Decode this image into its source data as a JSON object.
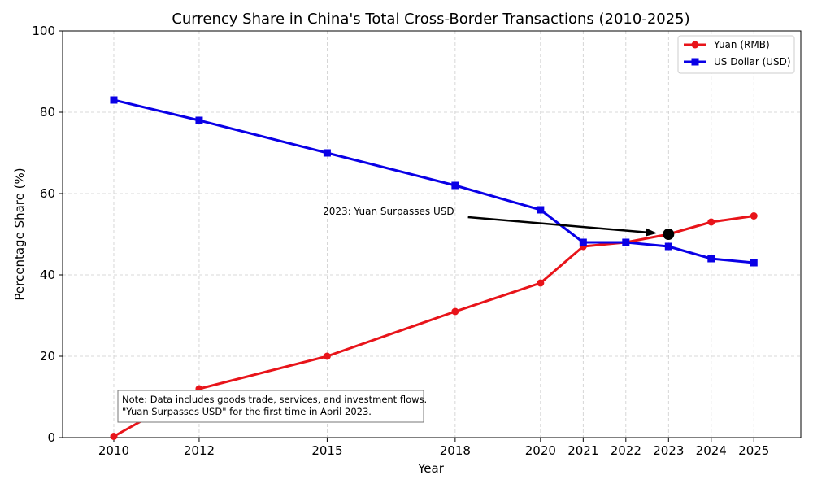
{
  "chart_data": {
    "type": "line",
    "title": "Currency Share in China's Total Cross-Border Transactions (2010-2025)",
    "xlabel": "Year",
    "ylabel": "Percentage Share (%)",
    "x": [
      2010,
      2012,
      2015,
      2018,
      2020,
      2021,
      2022,
      2023,
      2024,
      2025
    ],
    "x_tick_labels": [
      "2010",
      "2012",
      "2015",
      "2018",
      "2020",
      "2021",
      "2022",
      "2023",
      "2024",
      "2025"
    ],
    "ylim": [
      0,
      100
    ],
    "y_ticks": [
      0,
      20,
      40,
      60,
      80,
      100
    ],
    "y_tick_labels": [
      "0",
      "20",
      "40",
      "60",
      "80",
      "100"
    ],
    "grid": true,
    "legend_position": "top-right",
    "series": [
      {
        "name": "Yuan (RMB)",
        "color": "#e8141a",
        "marker": "circle",
        "values": [
          0.3,
          12,
          20,
          31,
          38,
          47,
          48,
          50,
          53,
          54.5
        ]
      },
      {
        "name": "US Dollar (USD)",
        "color": "#0a00e6",
        "marker": "square",
        "values": [
          83,
          78,
          70,
          62,
          56,
          48,
          48,
          47,
          44,
          43
        ]
      }
    ],
    "annotation": {
      "text": "2023: Yuan Surpasses USD",
      "point": {
        "x": 2023,
        "y": 50
      },
      "text_anchor": {
        "x": 2018.3,
        "y": 54.2
      },
      "marker_color": "#000000"
    },
    "note": {
      "lines": [
        "Note: Data includes goods trade, services, and investment flows.",
        "\"Yuan Surpasses USD\" for the first time in April 2023."
      ]
    }
  }
}
